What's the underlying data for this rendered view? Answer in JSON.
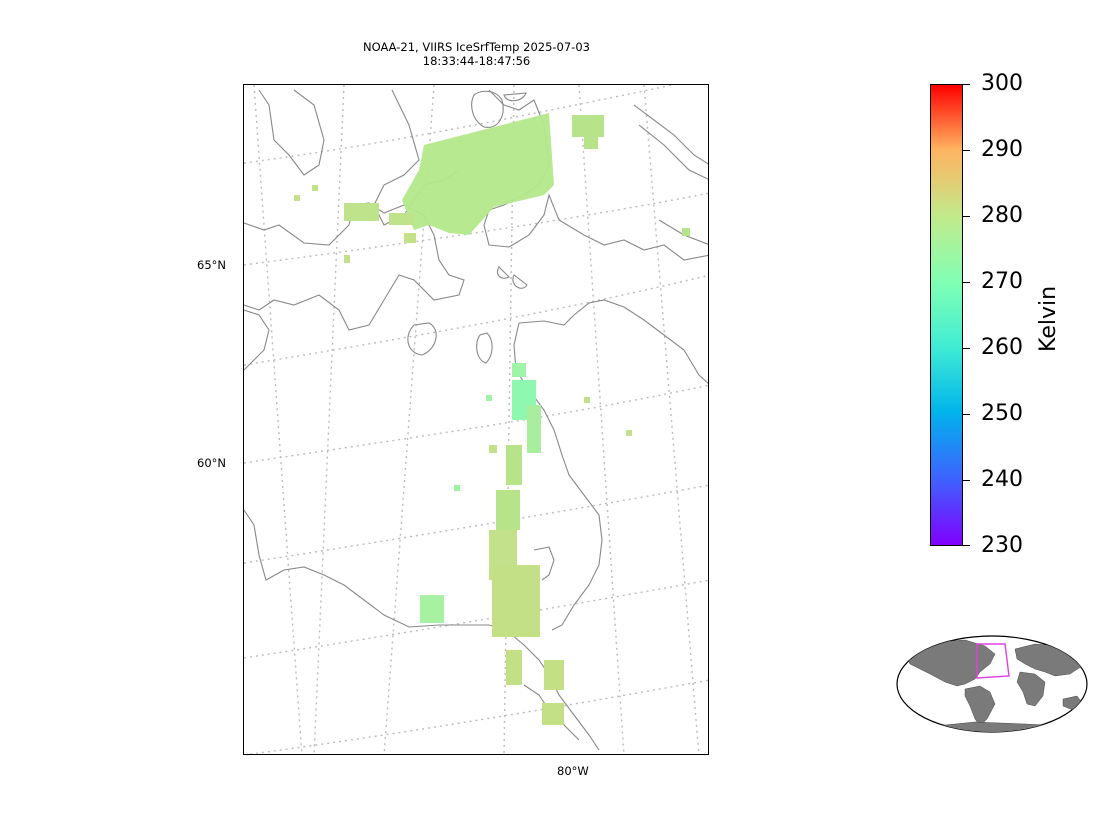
{
  "title": {
    "line1": "NOAA-21, VIIRS IceSrfTemp 2025-07-03",
    "line2": "18:33:44-18:47:56"
  },
  "map": {
    "lat_labels": [
      "65°N",
      "60°N"
    ],
    "lon_labels": [
      "80°W"
    ],
    "coastline_color": "#888888",
    "gridline_color": "#bbbbbb"
  },
  "colorbar": {
    "label": "Kelvin",
    "ticks": [
      "300",
      "290",
      "280",
      "270",
      "260",
      "250",
      "240",
      "230"
    ],
    "min": 230,
    "max": 300,
    "colormap": "rainbow"
  },
  "inset": {
    "land_color": "#7a7a7a",
    "box_color": "#e040e0"
  }
}
